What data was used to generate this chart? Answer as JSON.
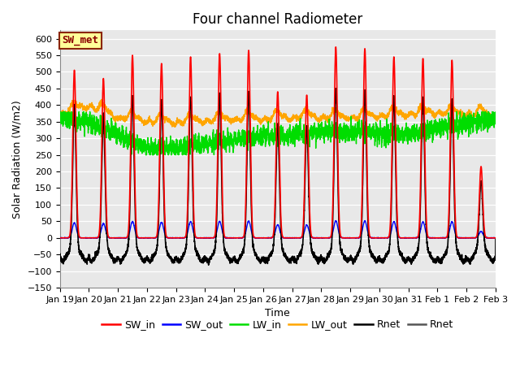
{
  "title": "Four channel Radiometer",
  "xlabel": "Time",
  "ylabel": "Solar Radiation (W/m2)",
  "ylim": [
    -150,
    625
  ],
  "yticks": [
    -150,
    -100,
    -50,
    0,
    50,
    100,
    150,
    200,
    250,
    300,
    350,
    400,
    450,
    500,
    550,
    600
  ],
  "xtick_labels": [
    "Jan 19",
    "Jan 20",
    "Jan 21",
    "Jan 22",
    "Jan 23",
    "Jan 24",
    "Jan 25",
    "Jan 26",
    "Jan 27",
    "Jan 28",
    "Jan 29",
    "Jan 30",
    "Jan 31",
    "Feb 1",
    "Feb 2",
    "Feb 3"
  ],
  "SW_in_color": "#FF0000",
  "SW_out_color": "#0000FF",
  "LW_in_color": "#00DD00",
  "LW_out_color": "#FFA500",
  "Rnet_color": "#000000",
  "Rnet2_color": "#555555",
  "annotation_text": "SW_met",
  "annotation_facecolor": "#FFFF99",
  "annotation_edgecolor": "#8B2500",
  "background_color": "#E8E8E8",
  "plot_bg_color": "#F0F0F0",
  "title_fontsize": 12,
  "axis_fontsize": 9,
  "tick_fontsize": 8,
  "legend_fontsize": 9,
  "SW_in_peaks": [
    505,
    480,
    550,
    525,
    545,
    555,
    565,
    440,
    430,
    575,
    570,
    545,
    540,
    535,
    215
  ],
  "num_days": 15,
  "n_pts_per_day": 288
}
